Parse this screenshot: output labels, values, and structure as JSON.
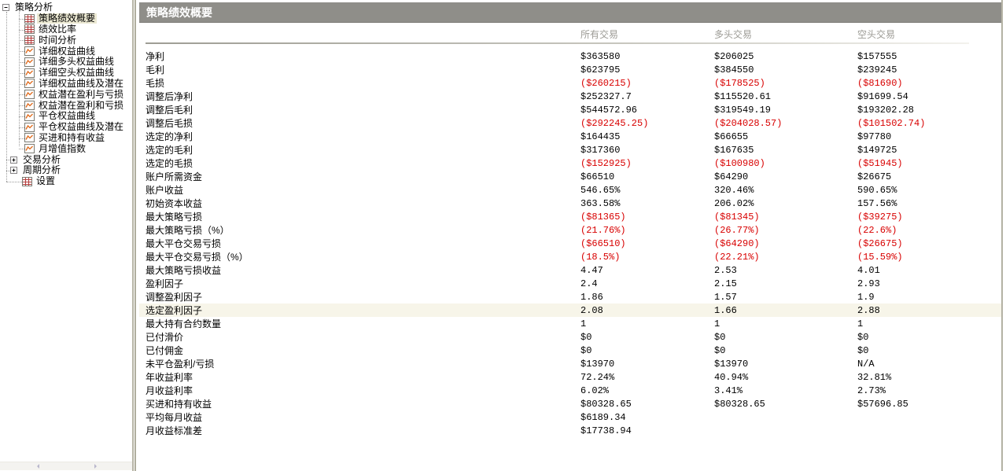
{
  "report": {
    "heading": "策略绩效概要",
    "columns": [
      "所有交易",
      "多头交易",
      "空头交易"
    ],
    "rows": [
      {
        "label": "净利",
        "values": [
          "$363580",
          "$206025",
          "$157555"
        ]
      },
      {
        "label": "毛利",
        "values": [
          "$623795",
          "$384550",
          "$239245"
        ]
      },
      {
        "label": "毛损",
        "values": [
          "($260215)",
          "($178525)",
          "($81690)"
        ]
      },
      {
        "label": "调整后净利",
        "values": [
          "$252327.7",
          "$115520.61",
          "$91699.54"
        ]
      },
      {
        "label": "调整后毛利",
        "values": [
          "$544572.96",
          "$319549.19",
          "$193202.28"
        ]
      },
      {
        "label": "调整后毛损",
        "values": [
          "($292245.25)",
          "($204028.57)",
          "($101502.74)"
        ]
      },
      {
        "label": "选定的净利",
        "values": [
          "$164435",
          "$66655",
          "$97780"
        ]
      },
      {
        "label": "选定的毛利",
        "values": [
          "$317360",
          "$167635",
          "$149725"
        ]
      },
      {
        "label": "选定的毛损",
        "values": [
          "($152925)",
          "($100980)",
          "($51945)"
        ]
      },
      {
        "label": "账户所需资金",
        "values": [
          "$66510",
          "$64290",
          "$26675"
        ]
      },
      {
        "label": "账户收益",
        "values": [
          "546.65%",
          "320.46%",
          "590.65%"
        ]
      },
      {
        "label": "初始资本收益",
        "values": [
          "363.58%",
          "206.02%",
          "157.56%"
        ]
      },
      {
        "label": "最大策略亏损",
        "values": [
          "($81365)",
          "($81345)",
          "($39275)"
        ]
      },
      {
        "label": "最大策略亏损（%）",
        "values": [
          "(21.76%)",
          "(26.77%)",
          "(22.6%)"
        ]
      },
      {
        "label": "最大平仓交易亏损",
        "values": [
          "($66510)",
          "($64290)",
          "($26675)"
        ]
      },
      {
        "label": "最大平仓交易亏损（%）",
        "values": [
          "(18.5%)",
          "(22.21%)",
          "(15.59%)"
        ]
      },
      {
        "label": "最大策略亏损收益",
        "values": [
          "4.47",
          "2.53",
          "4.01"
        ]
      },
      {
        "label": "盈利因子",
        "values": [
          "2.4",
          "2.15",
          "2.93"
        ]
      },
      {
        "label": "调整盈利因子",
        "values": [
          "1.86",
          "1.57",
          "1.9"
        ]
      },
      {
        "label": "选定盈利因子",
        "values": [
          "2.08",
          "1.66",
          "2.88"
        ],
        "highlighted": true
      },
      {
        "label": "最大持有合约数量",
        "values": [
          "1",
          "1",
          "1"
        ]
      },
      {
        "label": "已付滑价",
        "values": [
          "$0",
          "$0",
          "$0"
        ]
      },
      {
        "label": "已付佣金",
        "values": [
          "$0",
          "$0",
          "$0"
        ]
      },
      {
        "label": "未平仓盈利/亏损",
        "values": [
          "$13970",
          "$13970",
          "N/A"
        ]
      },
      {
        "label": "年收益利率",
        "values": [
          "72.24%",
          "40.94%",
          "32.81%"
        ]
      },
      {
        "label": "月收益利率",
        "values": [
          "6.02%",
          "3.41%",
          "2.73%"
        ]
      },
      {
        "label": "买进和持有收益",
        "values": [
          "$80328.65",
          "$80328.65",
          "$57696.85"
        ]
      },
      {
        "label": "平均每月收益",
        "values": [
          "$6189.34",
          "",
          ""
        ]
      },
      {
        "label": "月收益标准差",
        "values": [
          "$17738.94",
          "",
          ""
        ]
      }
    ]
  },
  "sidebar": {
    "tree": [
      {
        "label": "策略分析",
        "kind": "root",
        "expander": "minus"
      },
      {
        "label": "策略绩效概要",
        "kind": "leaf",
        "icon": "table-icon",
        "selected": true
      },
      {
        "label": "绩效比率",
        "kind": "leaf",
        "icon": "table-icon"
      },
      {
        "label": "时间分析",
        "kind": "leaf",
        "icon": "table-icon"
      },
      {
        "label": "详细权益曲线",
        "kind": "leaf",
        "icon": "chart-icon"
      },
      {
        "label": "详细多头权益曲线",
        "kind": "leaf",
        "icon": "chart-icon"
      },
      {
        "label": "详细空头权益曲线",
        "kind": "leaf",
        "icon": "chart-icon"
      },
      {
        "label": "详细权益曲线及潜在",
        "kind": "leaf",
        "icon": "chart-icon"
      },
      {
        "label": "权益潜在盈利与亏损",
        "kind": "leaf",
        "icon": "chart-icon"
      },
      {
        "label": "权益潜在盈利和亏损",
        "kind": "leaf",
        "icon": "chart-icon"
      },
      {
        "label": "平仓权益曲线",
        "kind": "leaf",
        "icon": "chart-icon"
      },
      {
        "label": "平仓权益曲线及潜在",
        "kind": "leaf",
        "icon": "chart-icon"
      },
      {
        "label": "买进和持有收益",
        "kind": "leaf",
        "icon": "chart-icon"
      },
      {
        "label": "月增值指数",
        "kind": "leaf",
        "icon": "chart-icon"
      },
      {
        "label": "交易分析",
        "kind": "branch",
        "expander": "plus"
      },
      {
        "label": "周期分析",
        "kind": "branch",
        "expander": "plus"
      },
      {
        "label": "设置",
        "kind": "leaf2",
        "icon": "table-icon"
      }
    ]
  },
  "colors": {
    "titlebar_gray": "#8f8e89",
    "header_text_gray": "#9c9b95",
    "negative_red": "#d80000",
    "row_highlight": "#f7f5e9",
    "tree_selection": "#ece9d3"
  }
}
